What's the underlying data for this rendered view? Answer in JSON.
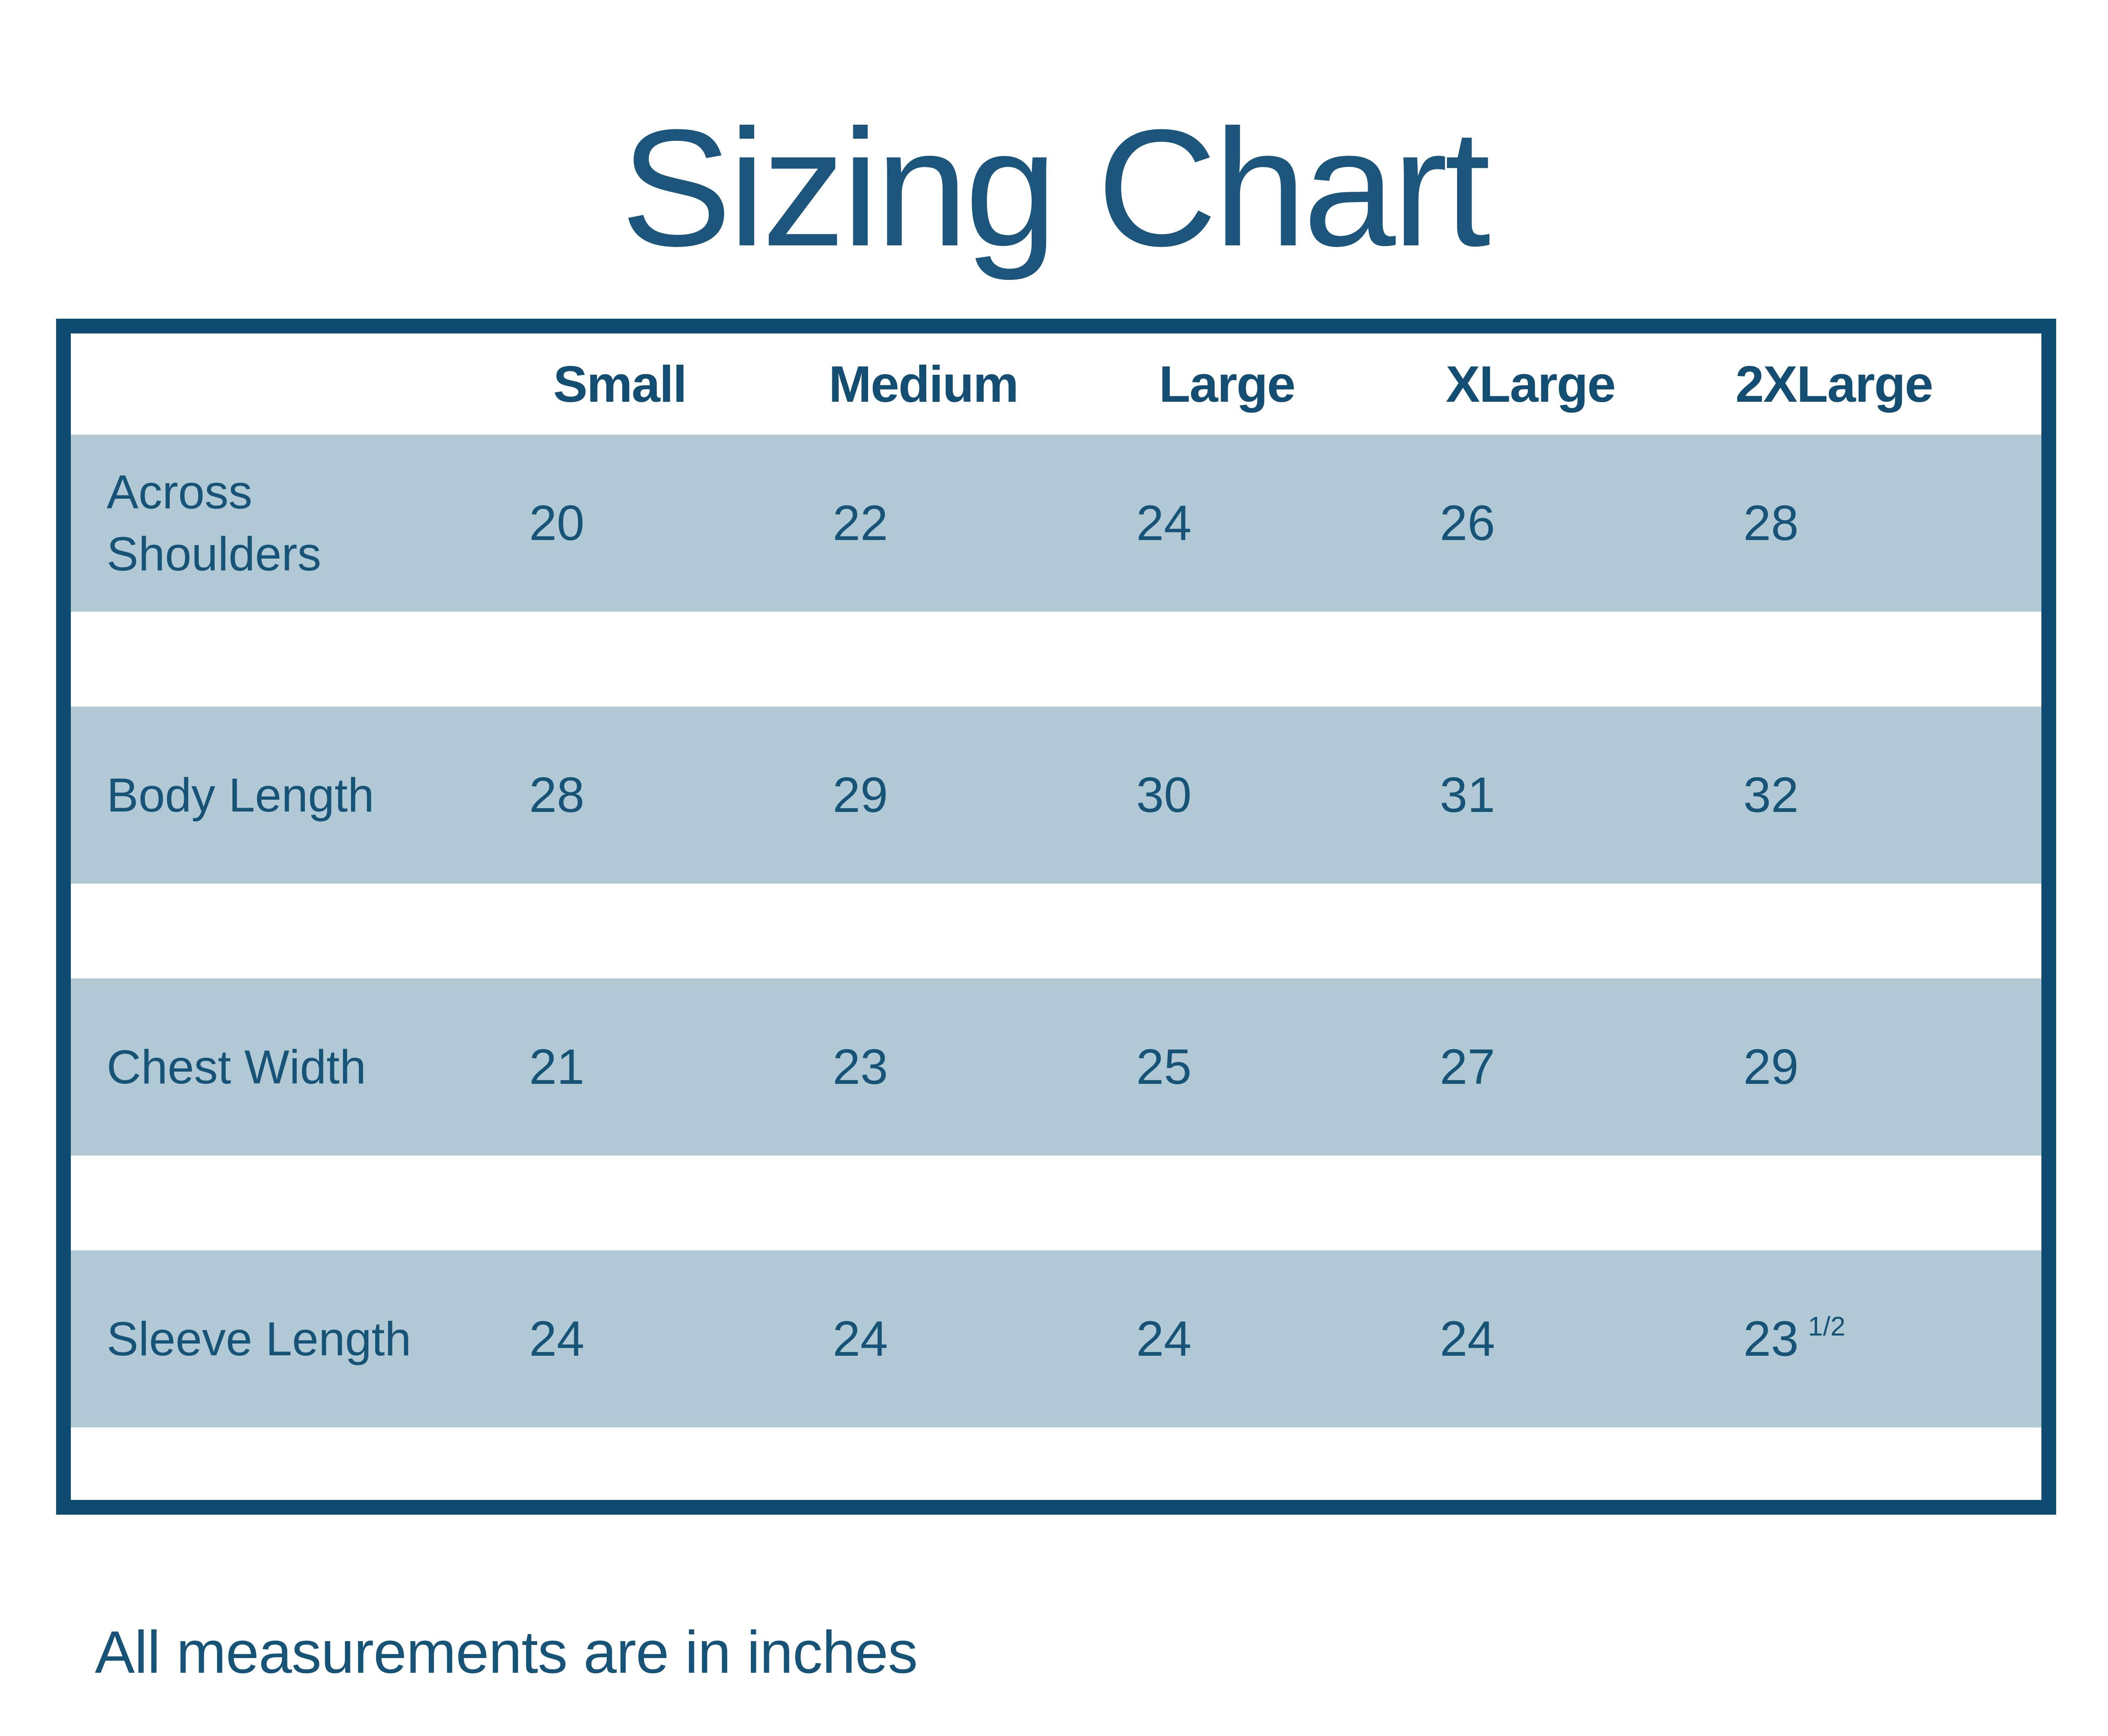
{
  "page": {
    "title": "Sizing Chart",
    "footnote": "All measurements are in inches"
  },
  "colors": {
    "navy_border": "#0e4c72",
    "title_text": "#1c567c",
    "header_text": "#134d72",
    "body_text": "#175377",
    "band_background": "#b0c9d5",
    "page_background": "#ffffff"
  },
  "table": {
    "columns": [
      "Small",
      "Medium",
      "Large",
      "XLarge",
      "2XLarge"
    ],
    "rows": [
      {
        "label": "Across Shoulders",
        "values": [
          "20",
          "22",
          "24",
          "26",
          "28"
        ]
      },
      {
        "label": "Body Length",
        "values": [
          "28",
          "29",
          "30",
          "31",
          "32"
        ]
      },
      {
        "label": "Chest Width",
        "values": [
          "21",
          "23",
          "25",
          "27",
          "29"
        ]
      },
      {
        "label": "Sleeve Length",
        "values": [
          "24",
          "24",
          "24",
          "24",
          "23"
        ],
        "fraction": "1/2"
      }
    ]
  },
  "chart_data": {
    "type": "table",
    "title": "Sizing Chart",
    "columns": [
      "Small",
      "Medium",
      "Large",
      "XLarge",
      "2XLarge"
    ],
    "rows": [
      {
        "label": "Across Shoulders",
        "values": [
          "20",
          "22",
          "24",
          "26",
          "28"
        ]
      },
      {
        "label": "Body Length",
        "values": [
          "28",
          "29",
          "30",
          "31",
          "32"
        ]
      },
      {
        "label": "Chest Width",
        "values": [
          "21",
          "23",
          "25",
          "27",
          "29"
        ]
      },
      {
        "label": "Sleeve Length",
        "values": [
          "24",
          "24",
          "24",
          "24",
          "23 1/2"
        ]
      }
    ],
    "units_note": "All measurements are in inches",
    "layout": {
      "grid": "horizontal-banded-rows",
      "band_color": "#b0c9d5",
      "border_color": "#0e4c72"
    }
  }
}
